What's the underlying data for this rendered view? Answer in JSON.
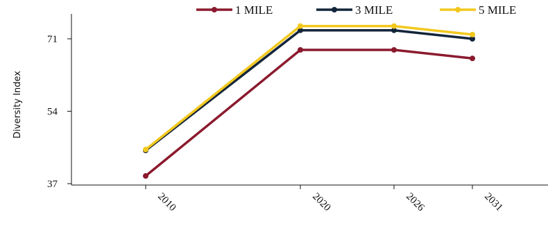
{
  "chart_data": {
    "type": "line",
    "title": "",
    "xlabel": "",
    "ylabel": "Diversity Index",
    "categories": [
      "2010",
      "2020",
      "2026",
      "2031"
    ],
    "yticks": [
      "37",
      "54",
      "71"
    ],
    "ylim": [
      37,
      71
    ],
    "grid": false,
    "legend_position": "top",
    "series": [
      {
        "name": "1 MILE",
        "color": "#8b1a2e",
        "values": [
          38.8,
          68.4,
          68.4,
          66.4
        ]
      },
      {
        "name": "3 MILE",
        "color": "#13253a",
        "values": [
          44.8,
          73.0,
          73.0,
          71.0
        ]
      },
      {
        "name": "5 MILE",
        "color": "#f2c81e",
        "values": [
          45.0,
          74.0,
          74.0,
          72.0
        ]
      }
    ]
  }
}
